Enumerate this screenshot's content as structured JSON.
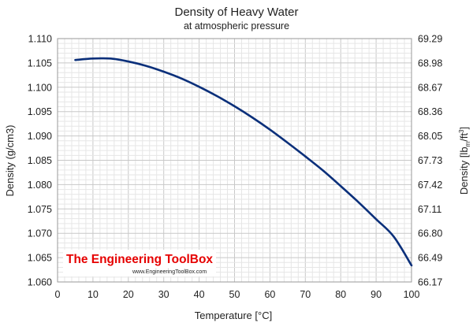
{
  "chart_data": {
    "type": "line",
    "title": "Density of Heavy Water",
    "subtitle": "at atmospheric pressure",
    "xlabel": "Temperature [°C]",
    "ylabel": "Density (g/cm3)",
    "ylabel_right": {
      "base": "Density [lb",
      "sub": "m",
      "mid": "/ft",
      "sup": "3",
      "end": "]"
    },
    "xlim": [
      0,
      100
    ],
    "ylim": [
      1.06,
      1.11
    ],
    "grid": true,
    "x_ticks": [
      "0",
      "10",
      "20",
      "30",
      "40",
      "50",
      "60",
      "70",
      "80",
      "90",
      "100"
    ],
    "y_ticks": [
      "1.060",
      "1.065",
      "1.070",
      "1.075",
      "1.080",
      "1.085",
      "1.090",
      "1.095",
      "1.100",
      "1.105",
      "1.110"
    ],
    "y_ticks_right": [
      "66.17",
      "66.49",
      "66.80",
      "67.11",
      "67.42",
      "67.73",
      "68.05",
      "68.36",
      "68.67",
      "68.98",
      "69.29"
    ],
    "series": [
      {
        "color": "#0a2f7a",
        "x": [
          5,
          10,
          15,
          20,
          25,
          30,
          35,
          40,
          45,
          50,
          55,
          60,
          65,
          70,
          75,
          80,
          85,
          90,
          95,
          100
        ],
        "y": [
          1.1056,
          1.1059,
          1.1059,
          1.1053,
          1.1044,
          1.1032,
          1.1018,
          1.1001,
          1.0982,
          1.0961,
          1.0938,
          1.0913,
          1.0886,
          1.0858,
          1.0829,
          1.0797,
          1.0764,
          1.0729,
          1.0693,
          1.0634
        ]
      }
    ]
  },
  "watermark": {
    "brand": "The Engineering ToolBox",
    "url": "www.EngineeringToolBox.com",
    "brand_color": "#e60000"
  }
}
